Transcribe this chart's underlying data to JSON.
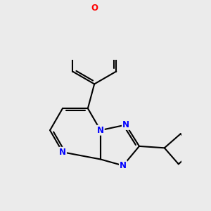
{
  "bg": "#ebebeb",
  "bc": "#000000",
  "nc": "#0000ff",
  "oc": "#ff0000",
  "lw": 1.5,
  "lw_thin": 1.0,
  "fs": 8.5,
  "figsize": [
    3.0,
    3.0
  ],
  "dpi": 100,
  "xlim": [
    -2.8,
    3.2
  ],
  "ylim": [
    -3.2,
    2.8
  ]
}
